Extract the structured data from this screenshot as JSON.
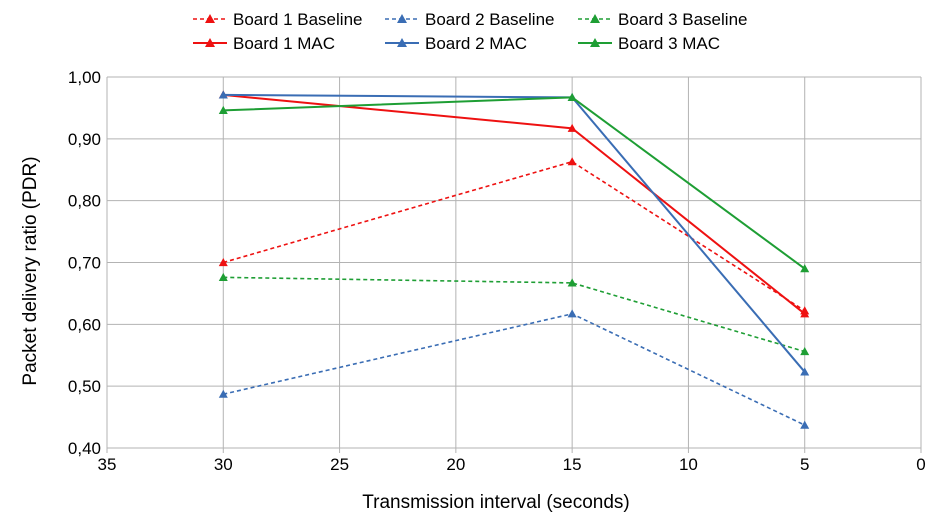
{
  "chart_data": {
    "type": "line",
    "title": "",
    "xlabel": "Transmission interval (seconds)",
    "ylabel": "Packet delivery ratio (PDR)",
    "x": [
      30,
      15,
      5
    ],
    "xlim": [
      35,
      0
    ],
    "x_reversed": true,
    "x_ticks": [
      35,
      30,
      25,
      20,
      15,
      10,
      5,
      0
    ],
    "ylim": [
      0.4,
      1.0
    ],
    "y_ticks": [
      0.4,
      0.5,
      0.6,
      0.7,
      0.8,
      0.9,
      1.0
    ],
    "y_tick_labels": [
      "0,40",
      "0,50",
      "0,60",
      "0,70",
      "0,80",
      "0,90",
      "1,00"
    ],
    "grid": true,
    "legend_position": "top",
    "marker": "triangle",
    "series": [
      {
        "name": "Board 1 Baseline",
        "color": "#ee1111",
        "dashed": true,
        "values": [
          0.7,
          0.863,
          0.622
        ]
      },
      {
        "name": "Board 2 Baseline",
        "color": "#3a6db4",
        "dashed": true,
        "values": [
          0.487,
          0.617,
          0.437
        ]
      },
      {
        "name": "Board 3 Baseline",
        "color": "#1e9e34",
        "dashed": true,
        "values": [
          0.676,
          0.667,
          0.556
        ]
      },
      {
        "name": "Board 1 MAC",
        "color": "#ee1111",
        "dashed": false,
        "values": [
          0.971,
          0.917,
          0.617
        ]
      },
      {
        "name": "Board 2 MAC",
        "color": "#3a6db4",
        "dashed": false,
        "values": [
          0.971,
          0.967,
          0.523
        ]
      },
      {
        "name": "Board 3 MAC",
        "color": "#1e9e34",
        "dashed": false,
        "values": [
          0.946,
          0.967,
          0.69
        ]
      }
    ]
  }
}
